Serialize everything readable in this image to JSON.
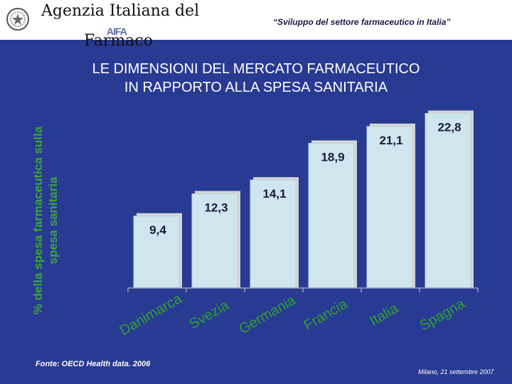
{
  "header": {
    "agency_line1": "Agenzia Italiana del",
    "agency_line2": "Farmaco",
    "logo_text": "AIFA",
    "subtitle": "“Sviluppo del settore farmaceutico in Italia”"
  },
  "slide": {
    "title_line1": "LE DIMENSIONI DEL MERCATO FARMACEUTICO",
    "title_line2": "IN RAPPORTO ALLA SPESA SANITARIA",
    "source": "Fonte: OECD Health data. 2006",
    "date": "Milano, 21 settembre 2007"
  },
  "colors": {
    "background": "#283a92",
    "bar_fill": "#cfe6ee",
    "bar_shadow": "#d5d5d5",
    "axis": "#9aa0b8",
    "label_text": "#2fa12f",
    "value_text": "#1a1a3a"
  },
  "chart_data": {
    "type": "bar",
    "title": "LE DIMENSIONI DEL MERCATO FARMACEUTICO IN RAPPORTO ALLA SPESA SANITARIA",
    "ylabel_line1": "% della spesa farmaceutica sulla",
    "ylabel_line2": "spesa sanitaria",
    "xlabel": "",
    "categories": [
      "Danimarca",
      "Svezia",
      "Germania",
      "Francia",
      "Italia",
      "Spagna"
    ],
    "values": [
      9.4,
      12.3,
      14.1,
      18.9,
      21.1,
      22.8
    ],
    "value_labels": [
      "9,4",
      "12,3",
      "14,1",
      "18,9",
      "21,1",
      "22,8"
    ],
    "ylim": [
      0,
      26
    ],
    "grid": false
  }
}
